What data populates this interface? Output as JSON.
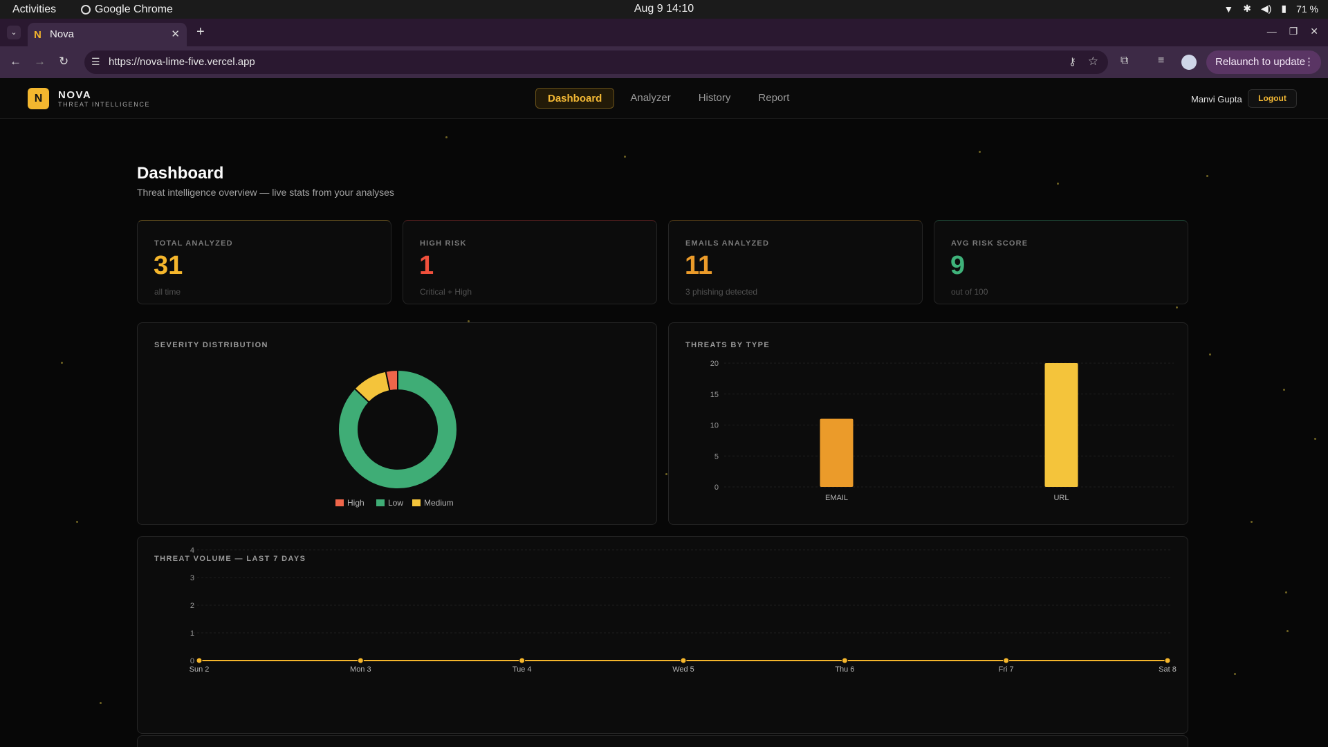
{
  "os": {
    "activities": "Activities",
    "app": "Google Chrome",
    "clock": "Aug 9  14:10",
    "battery": "71 %"
  },
  "browser": {
    "tab_title": "Nova",
    "url": "https://nova-lime-five.vercel.app",
    "relaunch": "Relaunch to update"
  },
  "app": {
    "logo_letter": "N",
    "brand": "NOVA",
    "brand_sub": "THREAT INTELLIGENCE",
    "nav": [
      "Dashboard",
      "Analyzer",
      "History",
      "Report"
    ],
    "active_nav": "Dashboard",
    "user": "Manvi Gupta",
    "logout": "Logout"
  },
  "page": {
    "title": "Dashboard",
    "subtitle": "Threat intelligence overview — live stats from your analyses"
  },
  "stats": [
    {
      "label": "TOTAL ANALYZED",
      "value": "31",
      "note": "all time",
      "color": "#f5b62c",
      "accent": "#6a5420"
    },
    {
      "label": "HIGH RISK",
      "value": "1",
      "note": "Critical + High",
      "color": "#f0503c",
      "accent": "#5a2020"
    },
    {
      "label": "EMAILS ANALYZED",
      "value": "11",
      "note": "3 phishing detected",
      "color": "#eb9b2a",
      "accent": "#5a4018"
    },
    {
      "label": "AVG RISK SCORE",
      "value": "9",
      "note": "out of 100",
      "color": "#3fb27a",
      "accent": "#1f4a38"
    }
  ],
  "severity": {
    "title": "SEVERITY DISTRIBUTION",
    "chart_data": {
      "type": "pie",
      "slices": [
        {
          "name": "Low",
          "value": 27,
          "color": "#3fad76"
        },
        {
          "name": "Medium",
          "value": 3,
          "color": "#f4c43b"
        },
        {
          "name": "High",
          "value": 1,
          "color": "#f0664a"
        }
      ],
      "legend": [
        "High",
        "Low",
        "Medium"
      ]
    }
  },
  "types": {
    "title": "THREATS BY TYPE",
    "chart_data": {
      "type": "bar",
      "categories": [
        "EMAIL",
        "URL"
      ],
      "values": [
        11,
        20
      ],
      "colors": [
        "#eb9b2a",
        "#f4c43b"
      ],
      "ylim": [
        0,
        20
      ],
      "yticks": [
        0,
        5,
        10,
        15,
        20
      ]
    }
  },
  "volume": {
    "title": "THREAT VOLUME — LAST 7 DAYS",
    "chart_data": {
      "type": "line",
      "x": [
        "Sun 2",
        "Mon 3",
        "Tue 4",
        "Wed 5",
        "Thu 6",
        "Fri 7",
        "Sat 8"
      ],
      "values": [
        0,
        0,
        0,
        0,
        0,
        0,
        0
      ],
      "ylim": [
        0,
        4
      ],
      "yticks": [
        0,
        1,
        2,
        3,
        4
      ],
      "color": "#f5b62c"
    }
  }
}
